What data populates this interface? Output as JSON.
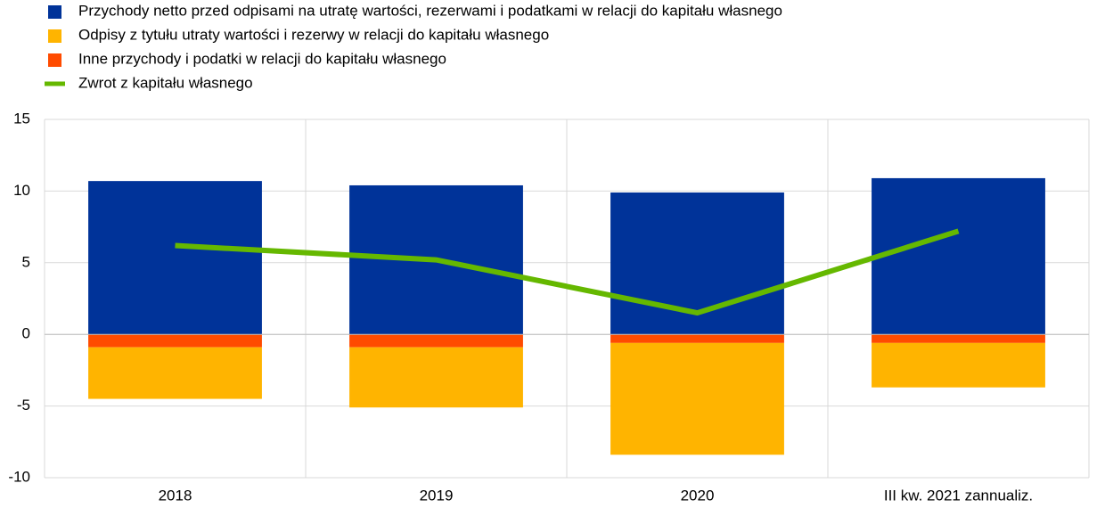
{
  "chart_data": {
    "type": "bar",
    "categories": [
      "2018",
      "2019",
      "2020",
      "III kw. 2021 zannualiz."
    ],
    "series": [
      {
        "name": "Przychody netto przed odpisami na utratę wartości, rezerwami i podatkami w relacji do kapitału własnego",
        "color": "#003399",
        "type": "bar",
        "values": [
          10.7,
          10.4,
          9.9,
          10.9
        ]
      },
      {
        "name": "Odpisy z tytułu utraty wartości i rezerwy w relacji do kapitału własnego",
        "color": "#ffb400",
        "type": "bar",
        "values": [
          -3.6,
          -4.2,
          -7.8,
          -3.1
        ]
      },
      {
        "name": "Inne przychody i podatki w relacji do kapitału własnego",
        "color": "#ff4b00",
        "type": "bar",
        "values": [
          -0.9,
          -0.9,
          -0.6,
          -0.6
        ]
      },
      {
        "name": "Zwrot z kapitału własnego",
        "color": "#65b800",
        "type": "line",
        "values": [
          6.2,
          5.2,
          1.5,
          7.2
        ]
      }
    ],
    "stacked": true,
    "ylim": [
      -10,
      15
    ],
    "yticks": [
      15,
      10,
      5,
      0,
      -5,
      -10
    ],
    "grid": true
  }
}
